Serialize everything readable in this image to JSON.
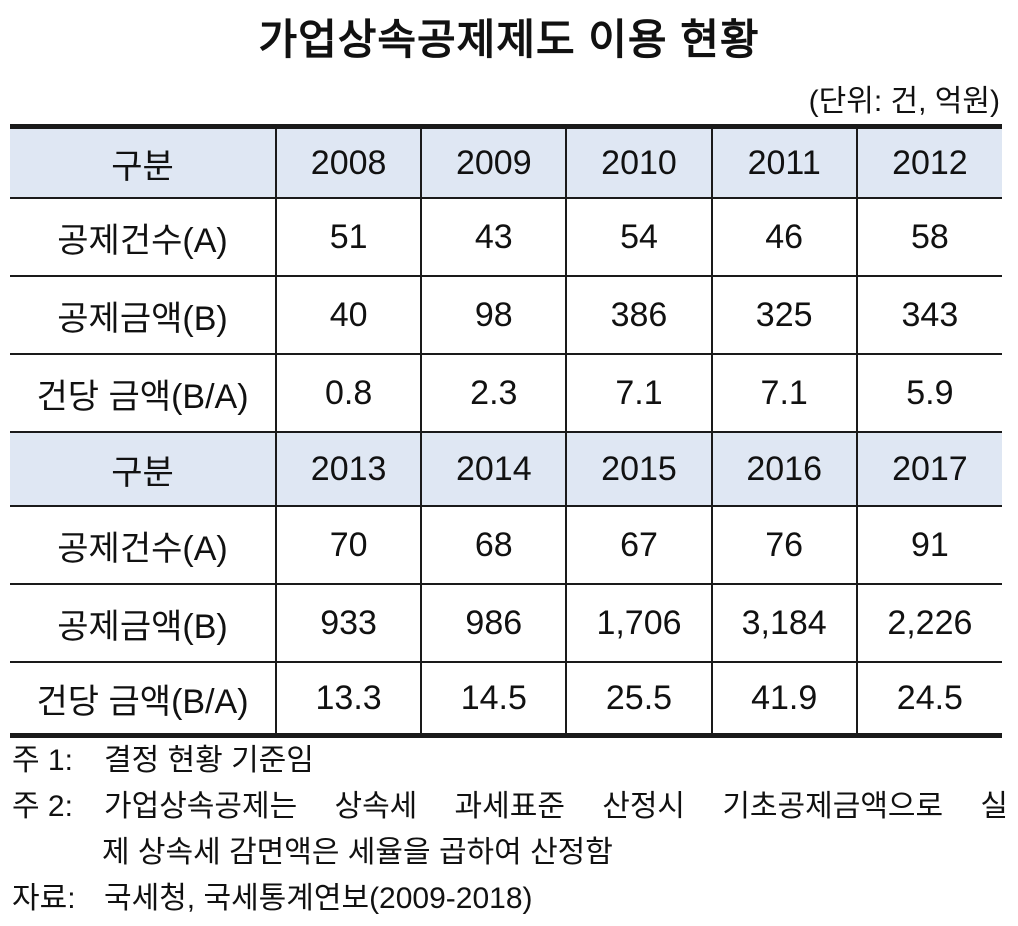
{
  "title": "가업상속공제제도 이용 현황",
  "unit": "(단위: 건, 억원)",
  "table": {
    "blocks": [
      {
        "header": {
          "label": "구분",
          "years": [
            "2008",
            "2009",
            "2010",
            "2011",
            "2012"
          ]
        },
        "rows": [
          {
            "label": "공제건수(A)",
            "values": [
              "51",
              "43",
              "54",
              "46",
              "58"
            ]
          },
          {
            "label": "공제금액(B)",
            "values": [
              "40",
              "98",
              "386",
              "325",
              "343"
            ]
          },
          {
            "label": "건당 금액(B/A)",
            "values": [
              "0.8",
              "2.3",
              "7.1",
              "7.1",
              "5.9"
            ]
          }
        ]
      },
      {
        "header": {
          "label": "구분",
          "years": [
            "2013",
            "2014",
            "2015",
            "2016",
            "2017"
          ]
        },
        "rows": [
          {
            "label": "공제건수(A)",
            "values": [
              "70",
              "68",
              "67",
              "76",
              "91"
            ]
          },
          {
            "label": "공제금액(B)",
            "values": [
              "933",
              "986",
              "1,706",
              "3,184",
              "2,226"
            ]
          },
          {
            "label": "건당 금액(B/A)",
            "values": [
              "13.3",
              "14.5",
              "25.5",
              "41.9",
              "24.5"
            ]
          }
        ]
      }
    ]
  },
  "notes": [
    {
      "label": "주 1:",
      "text": "결정 현황 기준임"
    },
    {
      "label": "주 2:",
      "text": "가업상속공제는 상속세 과세표준 산정시 기초공제금액으로 실",
      "continuation": "제 상속세 감면액은 세율을 곱하여 산정함"
    },
    {
      "label": "자료:",
      "text": "국세청, 국세통계연보(2009-2018)"
    }
  ],
  "colors": {
    "header_background": "#dfe7f3",
    "rule": "#1a1a1a",
    "text": "#111111"
  }
}
